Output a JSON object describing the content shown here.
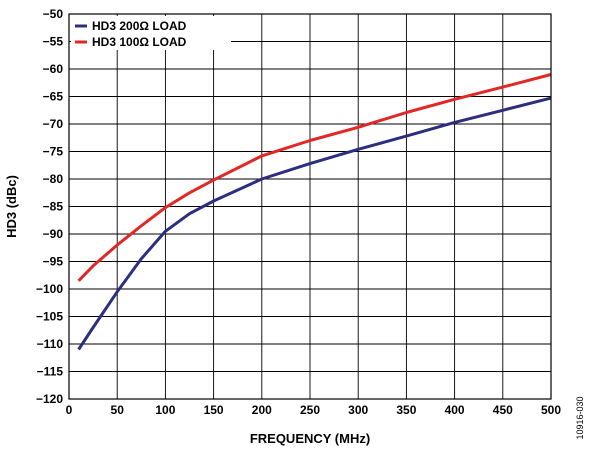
{
  "chart_data": {
    "type": "line",
    "xlabel": "FREQUENCY (MHz)",
    "ylabel": "HD3 (dBc)",
    "xlim": [
      0,
      500
    ],
    "ylim": [
      -120,
      -50
    ],
    "x_ticks": [
      0,
      50,
      100,
      150,
      200,
      250,
      300,
      350,
      400,
      450,
      500
    ],
    "y_ticks": [
      -50,
      -55,
      -60,
      -65,
      -70,
      -75,
      -80,
      -85,
      -90,
      -95,
      -100,
      -105,
      -110,
      -115,
      -120
    ],
    "x_tick_labels": [
      "0",
      "50",
      "100",
      "150",
      "200",
      "250",
      "300",
      "350",
      "400",
      "450",
      "500"
    ],
    "y_tick_labels": [
      "−50",
      "−55",
      "−60",
      "−65",
      "−70",
      "−75",
      "−80",
      "−85",
      "−90",
      "−95",
      "−100",
      "−105",
      "−110",
      "−115",
      "−120"
    ],
    "grid": true,
    "legend_position": "top-left",
    "series": [
      {
        "name": "HD3 200Ω LOAD",
        "color": "#2b2f7e",
        "x": [
          10,
          25,
          50,
          75,
          100,
          125,
          150,
          200,
          250,
          300,
          350,
          400,
          450,
          500
        ],
        "y": [
          -111,
          -107,
          -100.5,
          -94.5,
          -89.5,
          -86.3,
          -84,
          -80,
          -77.2,
          -74.6,
          -72.2,
          -69.7,
          -67.5,
          -65.3
        ]
      },
      {
        "name": "HD3 100Ω LOAD",
        "color": "#e32626",
        "x": [
          10,
          25,
          50,
          75,
          100,
          125,
          150,
          200,
          250,
          300,
          350,
          400,
          450,
          500
        ],
        "y": [
          -98.5,
          -95.8,
          -92,
          -88.5,
          -85.2,
          -82.5,
          -80.2,
          -75.8,
          -73,
          -70.6,
          -67.9,
          -65.5,
          -63.3,
          -61
        ]
      }
    ],
    "figure_id": "10916-030"
  }
}
